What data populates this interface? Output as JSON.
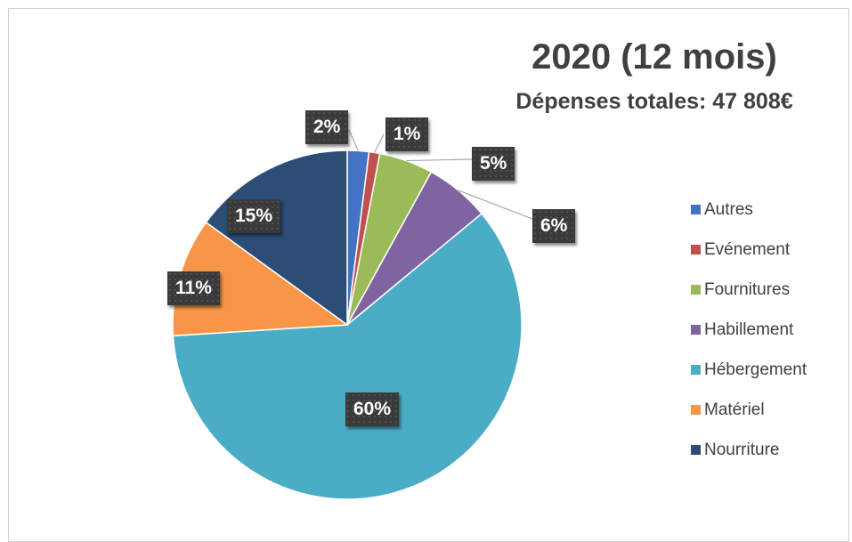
{
  "chart_data": {
    "type": "pie",
    "title": "2020 (12 mois)",
    "subtitle": "Dépenses totales: 47 808€",
    "categories": [
      "Autres",
      "Evénement",
      "Fournitures",
      "Habillement",
      "Hébergement",
      "Matériel",
      "Nourriture"
    ],
    "values": [
      2,
      1,
      5,
      6,
      60,
      11,
      15
    ],
    "labels": [
      "2%",
      "1%",
      "5%",
      "6%",
      "60%",
      "11%",
      "15%"
    ],
    "colors": [
      "#4472c4",
      "#c0504d",
      "#9bbb59",
      "#8064a2",
      "#4bacc6",
      "#f79646",
      "#2c4d75"
    ],
    "legend_position": "right",
    "data_labels": "outside-end-with-leader-lines"
  }
}
